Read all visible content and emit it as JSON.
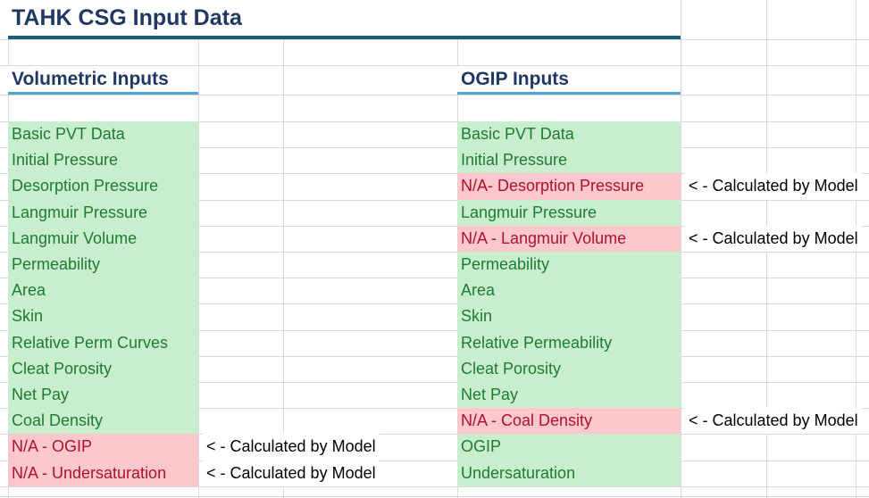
{
  "title": "TAHK CSG Input Data",
  "annotation_label": "< - Calculated by Model",
  "colors": {
    "title_text": "#1f3864",
    "title_border": "#1e5b7a",
    "header_underline": "#54a0da",
    "good_bg": "#c8eecd",
    "good_text": "#1e7b34",
    "bad_bg": "#fcc7cd",
    "bad_text": "#ae122a",
    "annotation_text": "#000000",
    "gridline": "#d9d9d9"
  },
  "columns": [
    {
      "header": "Volumetric Inputs",
      "rows": [
        {
          "label": "Basic PVT Data",
          "status": "good",
          "annotation": ""
        },
        {
          "label": "Initial Pressure",
          "status": "good",
          "annotation": ""
        },
        {
          "label": "Desorption Pressure",
          "status": "good",
          "annotation": ""
        },
        {
          "label": "Langmuir Pressure",
          "status": "good",
          "annotation": ""
        },
        {
          "label": "Langmuir Volume",
          "status": "good",
          "annotation": ""
        },
        {
          "label": "Permeability",
          "status": "good",
          "annotation": ""
        },
        {
          "label": "Area",
          "status": "good",
          "annotation": ""
        },
        {
          "label": "Skin",
          "status": "good",
          "annotation": ""
        },
        {
          "label": "Relative Perm Curves",
          "status": "good",
          "annotation": ""
        },
        {
          "label": "Cleat Porosity",
          "status": "good",
          "annotation": ""
        },
        {
          "label": "Net Pay",
          "status": "good",
          "annotation": ""
        },
        {
          "label": "Coal Density",
          "status": "good",
          "annotation": ""
        },
        {
          "label": "N/A - OGIP",
          "status": "bad",
          "annotation": "< - Calculated by Model"
        },
        {
          "label": "N/A - Undersaturation",
          "status": "bad",
          "annotation": "< - Calculated by Model"
        }
      ]
    },
    {
      "header": "OGIP Inputs",
      "rows": [
        {
          "label": "Basic PVT Data",
          "status": "good",
          "annotation": ""
        },
        {
          "label": "Initial Pressure",
          "status": "good",
          "annotation": ""
        },
        {
          "label": "N/A- Desorption Pressure",
          "status": "bad",
          "annotation": "< - Calculated by Model"
        },
        {
          "label": "Langmuir Pressure",
          "status": "good",
          "annotation": ""
        },
        {
          "label": "N/A - Langmuir Volume",
          "status": "bad",
          "annotation": "< - Calculated by Model"
        },
        {
          "label": "Permeability",
          "status": "good",
          "annotation": ""
        },
        {
          "label": "Area",
          "status": "good",
          "annotation": ""
        },
        {
          "label": "Skin",
          "status": "good",
          "annotation": ""
        },
        {
          "label": "Relative Permeability",
          "status": "good",
          "annotation": ""
        },
        {
          "label": "Cleat Porosity",
          "status": "good",
          "annotation": ""
        },
        {
          "label": "Net Pay",
          "status": "good",
          "annotation": ""
        },
        {
          "label": "N/A - Coal Density",
          "status": "bad",
          "annotation": "< - Calculated by Model"
        },
        {
          "label": "OGIP",
          "status": "good",
          "annotation": ""
        },
        {
          "label": "Undersaturation",
          "status": "good",
          "annotation": ""
        }
      ]
    }
  ]
}
